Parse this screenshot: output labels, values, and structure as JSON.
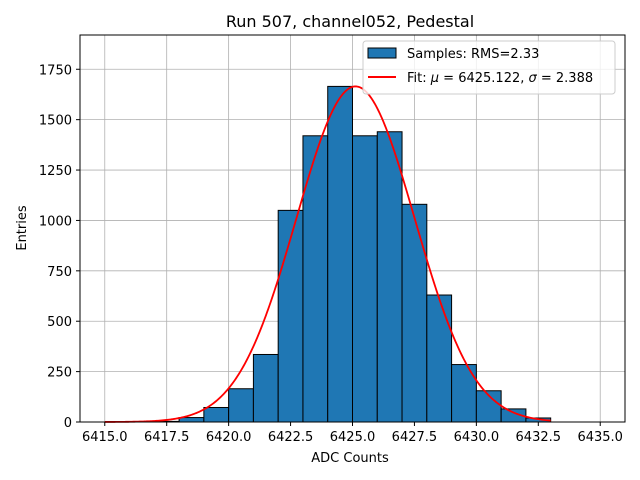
{
  "chart_data": {
    "type": "bar",
    "title": "Run 507, channel052, Pedestal",
    "xlabel": "ADC Counts",
    "ylabel": "Entries",
    "xlim": [
      6414.0,
      6436.0
    ],
    "ylim": [
      0,
      1920
    ],
    "xticks": [
      6415.0,
      6417.5,
      6420.0,
      6422.5,
      6425.0,
      6427.5,
      6430.0,
      6432.5,
      6435.0
    ],
    "xtick_labels": [
      "6415.0",
      "6417.5",
      "6420.0",
      "6422.5",
      "6425.0",
      "6427.5",
      "6430.0",
      "6432.5",
      "6435.0"
    ],
    "yticks": [
      0,
      250,
      500,
      750,
      1000,
      1250,
      1500,
      1750
    ],
    "ytick_labels": [
      "0",
      "250",
      "500",
      "750",
      "1000",
      "1250",
      "1500",
      "1750"
    ],
    "grid": true,
    "legend_position": "top-right",
    "histogram": {
      "name": "Samples: RMS=2.33",
      "color": "#1f77b4",
      "edge_color": "#000000",
      "bin_edges": [
        6417,
        6418,
        6419,
        6420,
        6421,
        6422,
        6423,
        6424,
        6425,
        6426,
        6427,
        6428,
        6429,
        6430,
        6431,
        6432,
        6433
      ],
      "counts": [
        3,
        22,
        72,
        165,
        335,
        1050,
        1420,
        1665,
        1420,
        1440,
        1080,
        630,
        285,
        155,
        65,
        20
      ]
    },
    "fit": {
      "name_prefix": "Fit: ",
      "mu_text": " = 6425.122, ",
      "sigma_text": " = 2.388",
      "mu_symbol": "μ",
      "sigma_symbol": "σ",
      "color": "#ff0000",
      "mu": 6425.122,
      "sigma": 2.388,
      "amplitude": 1665,
      "x_range": [
        6415,
        6433
      ]
    }
  }
}
